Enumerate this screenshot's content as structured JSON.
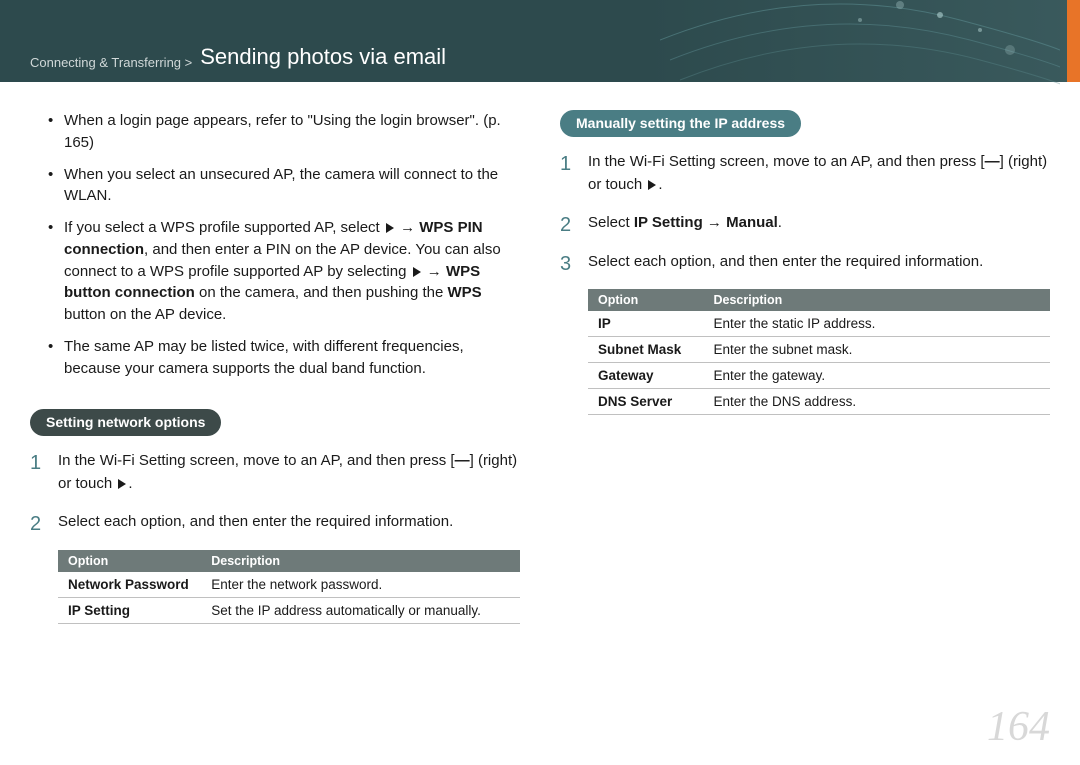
{
  "header": {
    "breadcrumb": "Connecting & Transferring > ",
    "title": "Sending photos via email"
  },
  "left": {
    "bullets": [
      {
        "text": "When a login page appears, refer to \"Using the login browser\". (p. 165)"
      },
      {
        "text": "When you select an unsecured AP, the camera will connect to the WLAN."
      },
      {
        "html": "If you select a WPS profile supported AP, select <span class='chev'></span> <span class='arrow'>→</span> <strong>WPS PIN connection</strong>, and then enter a PIN on the AP device. You can also connect to a WPS profile supported AP by selecting <span class='chev'></span> <span class='arrow'>→</span> <strong>WPS button connection</strong> on the camera, and then pushing the <strong>WPS</strong> button on the AP device."
      },
      {
        "text": "The same AP may be listed twice, with different frequencies, because your camera supports the dual band function."
      }
    ],
    "pill": "Setting network options",
    "steps": [
      {
        "n": "1",
        "html": "In the Wi-Fi Setting screen, move to an AP, and then press [<strong>⁠—</strong>] (right) or touch <span class='chev'></span>."
      },
      {
        "n": "2",
        "text": "Select each option, and then enter the required information."
      }
    ],
    "table": {
      "cols": [
        "Option",
        "Description"
      ],
      "rows": [
        [
          "Network Password",
          "Enter the network password."
        ],
        [
          "IP Setting",
          "Set the IP address automatically or manually."
        ]
      ]
    }
  },
  "right": {
    "pill": "Manually setting the IP address",
    "steps": [
      {
        "n": "1",
        "html": "In the Wi-Fi Setting screen, move to an AP, and then press [<strong>⁠—</strong>] (right) or touch <span class='chev'></span>."
      },
      {
        "n": "2",
        "html": "Select <strong>IP Setting</strong> → <strong>Manual</strong>."
      },
      {
        "n": "3",
        "text": "Select each option, and then enter the required information."
      }
    ],
    "table": {
      "cols": [
        "Option",
        "Description"
      ],
      "rows": [
        [
          "IP",
          "Enter the static IP address."
        ],
        [
          "Subnet Mask",
          "Enter the subnet mask."
        ],
        [
          "Gateway",
          "Enter the gateway."
        ],
        [
          "DNS Server",
          "Enter the DNS address."
        ]
      ]
    }
  },
  "page_number": "164"
}
